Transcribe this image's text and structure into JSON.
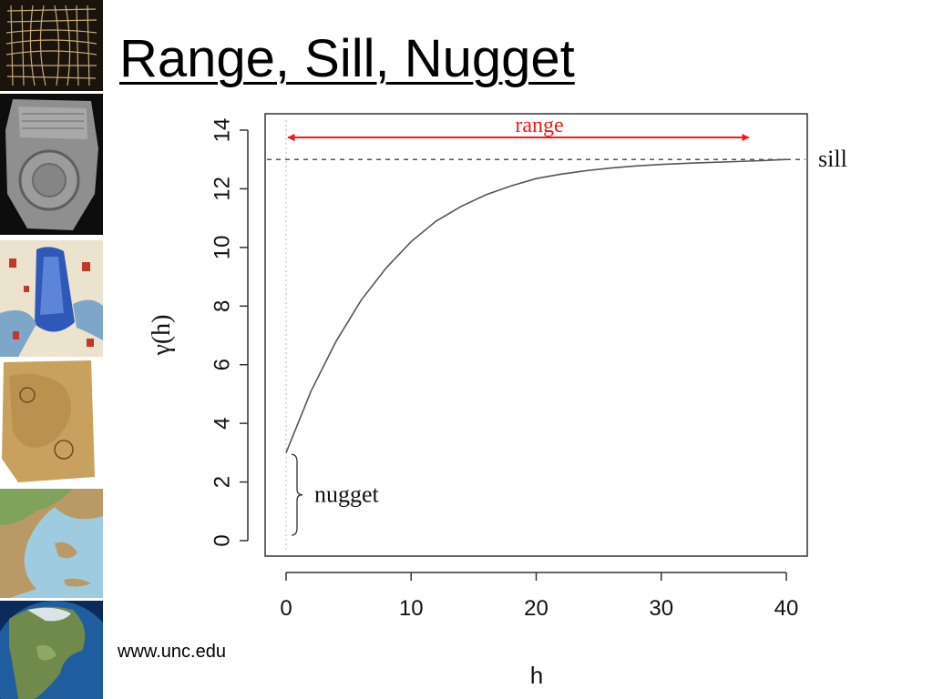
{
  "slide": {
    "title": "Range, Sill, Nugget",
    "credit": "www.unc.edu"
  },
  "sidebar": {
    "images": [
      {
        "name": "grid-map-thumbnail"
      },
      {
        "name": "clay-tablet-map-thumbnail"
      },
      {
        "name": "medieval-map-thumbnail"
      },
      {
        "name": "old-parchment-map-thumbnail"
      },
      {
        "name": "greece-relief-map-thumbnail"
      },
      {
        "name": "north-america-globe-thumbnail"
      }
    ]
  },
  "chart_data": {
    "type": "line",
    "xlabel": "h",
    "ylabel": "γ(h)",
    "xlim": [
      0,
      40
    ],
    "ylim": [
      0,
      14
    ],
    "xticks": [
      "0",
      "10",
      "20",
      "30",
      "40"
    ],
    "yticks": [
      "0",
      "2",
      "4",
      "6",
      "8",
      "10",
      "12",
      "14"
    ],
    "grid": false,
    "series": [
      {
        "x": [
          0,
          2,
          4,
          6,
          8,
          10,
          12,
          14,
          16,
          18,
          20,
          22,
          24,
          26,
          28,
          30,
          32,
          34,
          36,
          38,
          40
        ],
        "y": [
          3.0,
          5.1,
          6.8,
          8.2,
          9.3,
          10.2,
          10.9,
          11.4,
          11.8,
          12.1,
          12.35,
          12.5,
          12.62,
          12.71,
          12.78,
          12.83,
          12.87,
          12.9,
          12.93,
          12.96,
          13.0
        ],
        "color": "#555555"
      }
    ],
    "reference_lines": {
      "sill": 13,
      "nugget_origin": 0
    },
    "annotations": {
      "range_label": "range",
      "range_from": 0,
      "range_to": 37,
      "range_y": 13.75,
      "sill_label": "sill",
      "nugget_label": "nugget",
      "nugget_from": 0,
      "nugget_to": 3
    },
    "colors": {
      "range": "#ee1c1c",
      "axis": "#333333",
      "curve": "#555555"
    }
  }
}
